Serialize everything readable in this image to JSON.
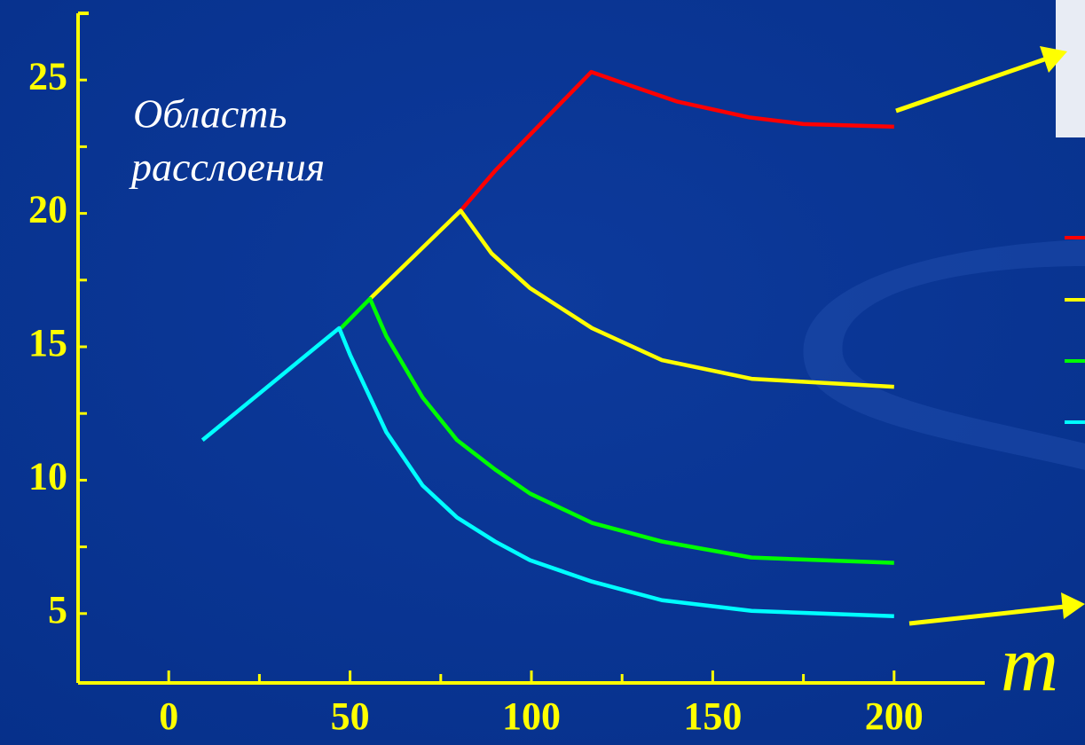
{
  "chart_data": {
    "type": "line",
    "annotation": [
      "Область",
      "расслоения"
    ],
    "x_label": "m",
    "xlim": [
      -25,
      225
    ],
    "ylim": [
      2.4,
      27.5
    ],
    "xticks": [
      0,
      50,
      100,
      150,
      200
    ],
    "yticks": [
      5,
      10,
      15,
      20,
      25
    ],
    "xminorticks": [
      25,
      75,
      125,
      175
    ],
    "yminorticks": [
      7.5,
      12.5,
      17.5,
      22.5
    ],
    "series": [
      {
        "color": "#ff0000",
        "x": [
          80.5,
          90,
          100,
          116.5,
          125,
          140,
          150,
          160,
          175,
          200
        ],
        "values": [
          20.1,
          21.6,
          23,
          25.3,
          24.9,
          24.2,
          23.9,
          23.6,
          23.35,
          23.25
        ]
      },
      {
        "color": "#ffff00",
        "x": [
          55.5,
          80.5,
          89,
          99.6,
          116.7,
          136,
          160.7,
          200
        ],
        "values": [
          16.8,
          20.1,
          18.5,
          17.2,
          15.7,
          14.5,
          13.8,
          13.5
        ]
      },
      {
        "color": "#00ff00",
        "x": [
          47.5,
          55.5,
          60,
          70,
          79.5,
          90,
          99.6,
          116.7,
          136,
          160.7,
          200
        ],
        "values": [
          15.7,
          16.8,
          15.4,
          13.1,
          11.5,
          10.4,
          9.5,
          8.4,
          7.7,
          7.1,
          6.9
        ]
      },
      {
        "color": "#00ffff",
        "x": [
          9.3,
          47,
          50,
          60,
          70,
          79.5,
          90,
          99.6,
          116.7,
          136,
          160.7,
          200
        ],
        "values": [
          11.5,
          15.7,
          14.7,
          11.8,
          9.8,
          8.6,
          7.7,
          7.0,
          6.2,
          5.5,
          5.1,
          4.9
        ]
      }
    ]
  }
}
